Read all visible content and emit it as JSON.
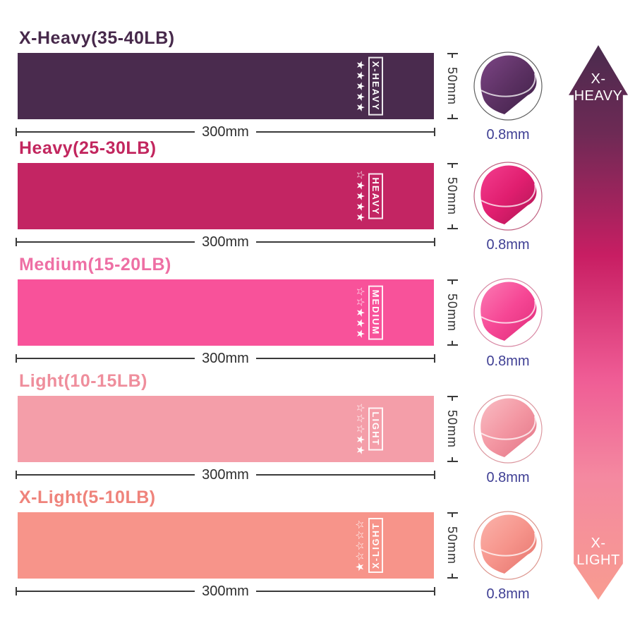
{
  "rows": [
    {
      "title": "X-Heavy(35-40LB)",
      "band_label": "X-HEAVY",
      "stars_total": 5,
      "stars_filled": 5,
      "length_label": "300mm",
      "width_label": "50mm",
      "thickness_label": "0.8mm",
      "colors": {
        "band": "#4A2B4E",
        "title": "#47294B",
        "ring": "#606060",
        "circle_light": "#7C4585",
        "circle_main": "#5C3163",
        "circle_dark": "#3F2047"
      }
    },
    {
      "title": "Heavy(25-30LB)",
      "band_label": "HEAVY",
      "stars_total": 5,
      "stars_filled": 4,
      "length_label": "300mm",
      "width_label": "50mm",
      "thickness_label": "0.8mm",
      "colors": {
        "band": "#C32563",
        "title": "#C2265E",
        "ring": "#C06080",
        "circle_light": "#F43E8F",
        "circle_main": "#E01E6F",
        "circle_dark": "#AD1553"
      }
    },
    {
      "title": "Medium(15-20LB)",
      "band_label": "MEDIUM",
      "stars_total": 5,
      "stars_filled": 3,
      "length_label": "300mm",
      "width_label": "50mm",
      "thickness_label": "0.8mm",
      "colors": {
        "band": "#F8529A",
        "title": "#EE6FA4",
        "ring": "#D887A3",
        "circle_light": "#FB7BB4",
        "circle_main": "#F64795",
        "circle_dark": "#DE2B78"
      }
    },
    {
      "title": "Light(10-15LB)",
      "band_label": "LIGHT",
      "stars_total": 5,
      "stars_filled": 2,
      "length_label": "300mm",
      "width_label": "50mm",
      "thickness_label": "0.8mm",
      "colors": {
        "band": "#F49EA9",
        "title": "#EF8E9C",
        "ring": "#DC98A0",
        "circle_light": "#F9BDC4",
        "circle_main": "#F396A2",
        "circle_dark": "#E27385"
      }
    },
    {
      "title": "X-Light(5-10LB)",
      "band_label": "X-LIGHT",
      "stars_total": 5,
      "stars_filled": 1,
      "length_label": "300mm",
      "width_label": "50mm",
      "thickness_label": "0.8mm",
      "colors": {
        "band": "#F7948A",
        "title": "#EF837B",
        "ring": "#DC958D",
        "circle_light": "#FBB3AB",
        "circle_main": "#F6948B",
        "circle_dark": "#E4736C"
      }
    }
  ],
  "dimension_style": {
    "line_color": "#3a3a3a",
    "text_color": "#2e2e2e",
    "thickness_text_color": "#3F3F94"
  },
  "scale_arrow": {
    "top_label_line1": "X-",
    "top_label_line2": "HEAVY",
    "bottom_label_line1": "X-",
    "bottom_label_line2": "LIGHT",
    "text_color": "#ffffff",
    "gradient": [
      "#4A2B4E 0%",
      "#6E2A55 16%",
      "#C81E63 38%",
      "#EF5C95 60%",
      "#F489A0 78%",
      "#F89C90 100%"
    ]
  }
}
